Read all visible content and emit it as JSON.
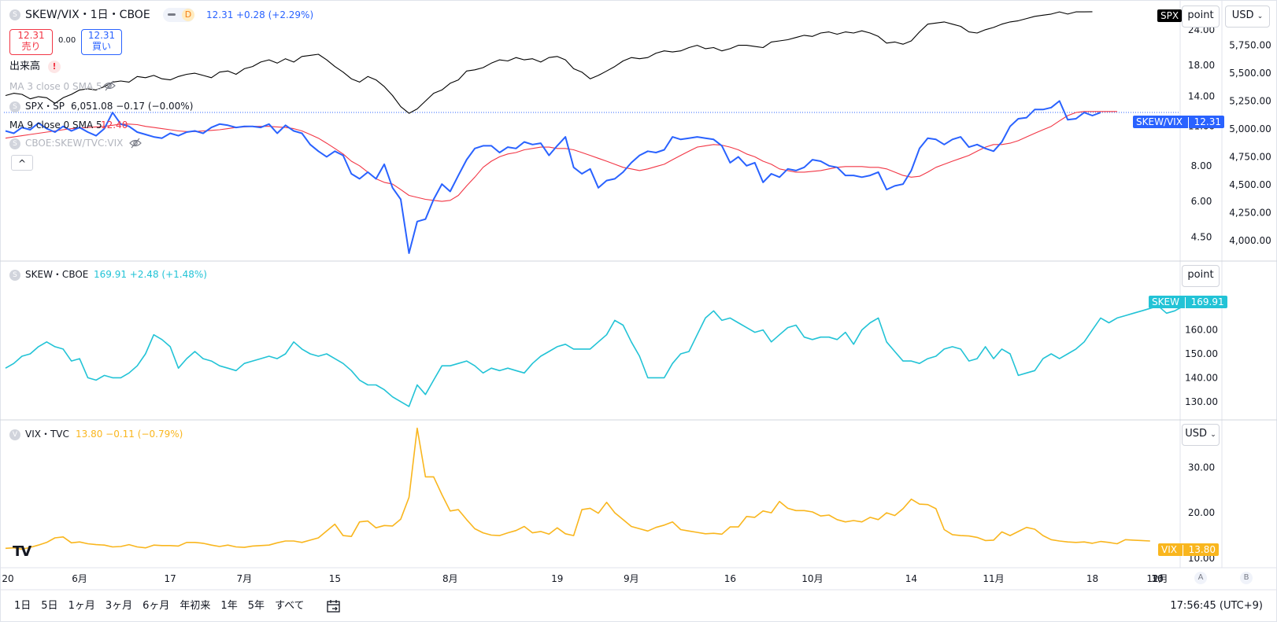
{
  "header": {
    "symbol_title": "SKEW/VIX・1日・CBOE",
    "d_badge": "D",
    "last_price": "12.31",
    "change": "+0.28 (+2.29%)",
    "sell_price": "12.31",
    "sell_label": "売り",
    "spread": "0.00",
    "buy_price": "12.31",
    "buy_label": "買い",
    "volume_label": "出来高",
    "volume_warning": "!",
    "ma3_label": "MA 3 close 0 SMA 5",
    "spx_overlay_label": "SPX・SP",
    "spx_overlay_values": "6,051.08 −0.17 (−0.00%)",
    "ma9_label": "MA 9 close 0 SMA 5",
    "ma9_value": "12.40",
    "compare_label": "CBOE:SKEW/TVC:VIX",
    "collapse_label": "^"
  },
  "panes": {
    "skew": {
      "title": "SKEW・CBOE",
      "values": "169.91 +2.48 (+1.48%)",
      "tag": "SKEW",
      "tag_value": "169.91",
      "scale_button": "point"
    },
    "vix": {
      "title": "VIX・TVC",
      "values": "13.80 −0.11 (−0.79%)",
      "tag": "VIX",
      "tag_value": "13.80",
      "scale_button": "USD"
    }
  },
  "right_scale": {
    "point_button": "point",
    "usd_button": "USD",
    "spx_tag": "SPX",
    "ratio_tag": "SKEW/VIX",
    "ratio_tag_value": "12.31",
    "ratio_ticks": [
      "24.00",
      "18.00",
      "14.00",
      "11.00",
      "8.00",
      "6.00",
      "4.50"
    ],
    "spx_ticks": [
      "5,750.00",
      "5,500.00",
      "5,250.00",
      "5,000.00",
      "4,750.00",
      "4,500.00",
      "4,250.00",
      "4,000.00"
    ],
    "skew_ticks": [
      "160.00",
      "150.00",
      "140.00",
      "130.00"
    ],
    "vix_ticks": [
      "30.00",
      "20.00",
      "10.00"
    ],
    "corner_a": "A",
    "corner_b": "B"
  },
  "time_axis": {
    "labels": [
      "20",
      "6月",
      "17",
      "7月",
      "15",
      "8月",
      "19",
      "9月",
      "16",
      "10月",
      "14",
      "11月",
      "18",
      "12月",
      "16",
      "30"
    ]
  },
  "toolbar": {
    "ranges": [
      "1日",
      "5日",
      "1ヶ月",
      "3ヶ月",
      "6ヶ月",
      "年初来",
      "1年",
      "5年",
      "すべて"
    ],
    "clock": "17:56:45 (UTC+9)"
  },
  "colors": {
    "ratio_line": "#2962ff",
    "ratio_ma": "#f23645",
    "spx_line": "#000000",
    "skew_line": "#22c3d6",
    "vix_line": "#f9b61e",
    "grid": "#e0e3eb"
  },
  "chart_data": [
    {
      "type": "line",
      "title": "SKEW/VIX・1日・CBOE",
      "x_range": [
        "2024-05-20",
        "2024-12-16"
      ],
      "ylim": [
        4.0,
        29.0
      ],
      "log_scale": true,
      "series": [
        {
          "name": "SKEW/VIX",
          "values": [
            10.6,
            10.4,
            10.9,
            10.7,
            11.3,
            10.8,
            10.5,
            11.0,
            10.6,
            10.9,
            10.5,
            10.2,
            10.8,
            12.3,
            11.2,
            11.0,
            10.5,
            10.3,
            10.1,
            10.0,
            10.4,
            10.2,
            10.5,
            10.6,
            10.4,
            10.9,
            11.2,
            11.1,
            10.9,
            11.0,
            11.0,
            10.9,
            11.2,
            10.4,
            11.1,
            10.6,
            10.4,
            9.5,
            9.0,
            8.6,
            9.0,
            8.7,
            7.5,
            7.2,
            7.6,
            7.2,
            8.1,
            6.7,
            6.1,
            3.95,
            5.1,
            5.2,
            6.1,
            6.9,
            6.5,
            7.4,
            8.4,
            9.2,
            9.4,
            9.4,
            8.9,
            9.3,
            9.2,
            9.7,
            9.5,
            9.6,
            8.7,
            9.4,
            10.1,
            7.9,
            7.5,
            7.8,
            6.7,
            7.1,
            7.2,
            7.6,
            8.2,
            8.7,
            9.0,
            8.9,
            9.1,
            10.1,
            9.9,
            10.0,
            10.1,
            10.0,
            9.9,
            9.4,
            8.2,
            8.6,
            8.0,
            8.2,
            7.0,
            7.5,
            7.3,
            7.8,
            7.7,
            7.9,
            8.4,
            8.3,
            8.0,
            7.9,
            7.4,
            7.4,
            7.3,
            7.4,
            7.6,
            6.6,
            6.8,
            6.9,
            7.7,
            9.2,
            10.0,
            9.9,
            9.5,
            9.9,
            10.1,
            9.3,
            9.5,
            9.2,
            9.0,
            9.7,
            11.0,
            11.7,
            11.8,
            12.6,
            12.6,
            12.8,
            13.5,
            11.6,
            11.7,
            12.3,
            12.0,
            12.31
          ]
        },
        {
          "name": "MA 9",
          "values": [
            10.0,
            10.1,
            10.2,
            10.3,
            10.4,
            10.5,
            10.6,
            10.7,
            10.8,
            10.85,
            10.9,
            10.95,
            11.0,
            11.1,
            11.2,
            11.2,
            11.15,
            11.0,
            10.9,
            10.8,
            10.7,
            10.6,
            10.55,
            10.55,
            10.6,
            10.65,
            10.7,
            10.8,
            10.9,
            10.95,
            11.0,
            11.0,
            11.0,
            10.95,
            10.9,
            10.8,
            10.6,
            10.3,
            10.0,
            9.6,
            9.2,
            8.8,
            8.3,
            8.0,
            7.6,
            7.2,
            7.0,
            6.9,
            6.6,
            6.3,
            6.2,
            6.1,
            6.05,
            6.0,
            6.05,
            6.3,
            6.8,
            7.3,
            7.9,
            8.3,
            8.6,
            8.8,
            8.9,
            9.1,
            9.2,
            9.3,
            9.3,
            9.2,
            9.2,
            9.1,
            8.9,
            8.7,
            8.5,
            8.3,
            8.1,
            7.9,
            7.8,
            7.7,
            7.8,
            7.95,
            8.1,
            8.4,
            8.7,
            9.0,
            9.3,
            9.4,
            9.5,
            9.45,
            9.3,
            9.1,
            8.8,
            8.6,
            8.3,
            8.1,
            7.8,
            7.7,
            7.6,
            7.6,
            7.65,
            7.7,
            7.8,
            7.9,
            7.95,
            7.95,
            7.95,
            7.9,
            7.9,
            7.8,
            7.6,
            7.4,
            7.3,
            7.35,
            7.6,
            7.9,
            8.1,
            8.3,
            8.5,
            8.7,
            9.0,
            9.3,
            9.5,
            9.5,
            9.6,
            9.8,
            10.1,
            10.4,
            10.7,
            11.0,
            11.5,
            12.0,
            12.3,
            12.4,
            12.4,
            12.4,
            12.4,
            12.4
          ]
        },
        {
          "name": "SPX",
          "values": [
            5300,
            5320,
            5310,
            5270,
            5290,
            5280,
            5230,
            5280,
            5310,
            5350,
            5360,
            5350,
            5380,
            5420,
            5430,
            5420,
            5470,
            5460,
            5480,
            5450,
            5440,
            5470,
            5490,
            5500,
            5480,
            5460,
            5510,
            5520,
            5490,
            5540,
            5560,
            5600,
            5620,
            5590,
            5630,
            5600,
            5650,
            5660,
            5670,
            5620,
            5560,
            5510,
            5450,
            5420,
            5470,
            5440,
            5380,
            5300,
            5200,
            5140,
            5180,
            5250,
            5320,
            5350,
            5410,
            5440,
            5520,
            5530,
            5550,
            5590,
            5620,
            5610,
            5640,
            5620,
            5630,
            5600,
            5640,
            5650,
            5620,
            5540,
            5510,
            5450,
            5480,
            5520,
            5560,
            5610,
            5640,
            5630,
            5640,
            5680,
            5700,
            5690,
            5700,
            5730,
            5750,
            5720,
            5730,
            5700,
            5720,
            5750,
            5750,
            5740,
            5730,
            5780,
            5790,
            5800,
            5820,
            5840,
            5830,
            5860,
            5870,
            5850,
            5870,
            5860,
            5880,
            5860,
            5830,
            5770,
            5780,
            5760,
            5790,
            5870,
            5940,
            5950,
            5960,
            5940,
            5920,
            5870,
            5860,
            5890,
            5910,
            5940,
            5960,
            5970,
            5990,
            6010,
            6020,
            6030,
            6050,
            6030,
            6050,
            6050,
            6051.08
          ]
        }
      ]
    },
    {
      "type": "line",
      "title": "SKEW・CBOE",
      "x_range": [
        "2024-05-20",
        "2024-12-16"
      ],
      "ylim": [
        125,
        175
      ],
      "series": [
        {
          "name": "SKEW",
          "values": [
            144.0,
            146.0,
            149.0,
            150.0,
            153.0,
            155.0,
            153.0,
            152.0,
            147.0,
            148.0,
            140.0,
            139.0,
            141.0,
            140.0,
            140.0,
            142.0,
            145.0,
            150.0,
            158.0,
            156.0,
            153.0,
            144.0,
            148.0,
            151.0,
            148.0,
            147.0,
            145.0,
            144.0,
            143.0,
            146.0,
            147.0,
            148.0,
            149.0,
            148.0,
            150.0,
            155.0,
            152.0,
            150.0,
            149.0,
            150.0,
            148.0,
            146.0,
            143.0,
            139.0,
            137.0,
            137.0,
            135.0,
            132.0,
            130.0,
            128.0,
            137.0,
            133.0,
            139.0,
            145.0,
            145.0,
            146.0,
            147.0,
            145.0,
            142.0,
            144.0,
            143.0,
            144.0,
            143.0,
            142.0,
            146.0,
            149.0,
            151.0,
            153.0,
            154.0,
            152.0,
            152.0,
            152.0,
            155.0,
            158.0,
            164.0,
            162.0,
            155.0,
            149.0,
            140.0,
            140.0,
            140.0,
            146.0,
            150.0,
            151.0,
            158.0,
            165.0,
            168.0,
            164.0,
            165.0,
            163.0,
            161.0,
            159.0,
            160.0,
            155.0,
            158.0,
            161.0,
            162.0,
            157.0,
            156.0,
            157.0,
            157.0,
            156.0,
            159.0,
            154.0,
            160.0,
            163.0,
            165.0,
            155.0,
            151.0,
            147.0,
            147.0,
            146.0,
            148.0,
            149.0,
            152.0,
            153.0,
            152.0,
            147.0,
            148.0,
            153.0,
            148.0,
            152.0,
            150.0,
            141.0,
            142.0,
            143.0,
            148.0,
            150.0,
            148.0,
            150.0,
            152.0,
            155.0,
            160.0,
            165.0,
            163.0,
            165.0,
            166.0,
            167.0,
            168.0,
            169.0,
            170.0,
            167.0,
            168.0,
            169.91
          ]
        }
      ]
    },
    {
      "type": "line",
      "title": "VIX・TVC",
      "x_range": [
        "2024-05-20",
        "2024-12-16"
      ],
      "ylim": [
        10,
        38
      ],
      "series": [
        {
          "name": "VIX",
          "values": [
            12.2,
            12.3,
            12.0,
            12.4,
            12.9,
            13.5,
            14.5,
            14.7,
            13.4,
            13.6,
            13.2,
            13.0,
            12.9,
            12.5,
            12.6,
            13.0,
            12.5,
            12.3,
            12.9,
            12.8,
            12.8,
            12.7,
            13.5,
            13.5,
            13.3,
            12.9,
            12.6,
            12.9,
            12.5,
            12.4,
            12.7,
            12.8,
            12.9,
            13.4,
            13.8,
            13.8,
            13.5,
            14.0,
            14.5,
            16.0,
            17.5,
            15.0,
            14.8,
            18.0,
            18.2,
            16.7,
            17.2,
            17.1,
            18.6,
            23.4,
            38.6,
            27.9,
            27.9,
            24.0,
            20.4,
            20.7,
            18.5,
            16.5,
            15.6,
            15.1,
            15.0,
            15.6,
            16.1,
            17.0,
            15.6,
            15.9,
            15.3,
            16.7,
            15.4,
            15.0,
            20.7,
            21.0,
            19.9,
            22.3,
            20.0,
            18.5,
            17.0,
            16.5,
            16.0,
            16.8,
            17.3,
            18.0,
            16.3,
            16.0,
            15.7,
            15.4,
            15.5,
            15.3,
            16.9,
            16.9,
            19.2,
            19.0,
            20.4,
            20.0,
            22.5,
            21.0,
            20.5,
            20.5,
            20.2,
            19.3,
            19.5,
            18.5,
            18.0,
            18.3,
            18.0,
            19.0,
            18.5,
            20.0,
            19.4,
            20.9,
            23.0,
            21.9,
            21.8,
            20.9,
            16.3,
            15.2,
            15.0,
            14.9,
            14.6,
            13.9,
            14.0,
            15.8,
            15.0,
            15.9,
            16.8,
            16.4,
            15.0,
            14.1,
            13.8,
            13.6,
            13.5,
            13.6,
            13.3,
            13.7,
            13.5,
            13.2,
            14.1,
            14.0,
            13.9,
            13.8
          ]
        }
      ]
    }
  ]
}
